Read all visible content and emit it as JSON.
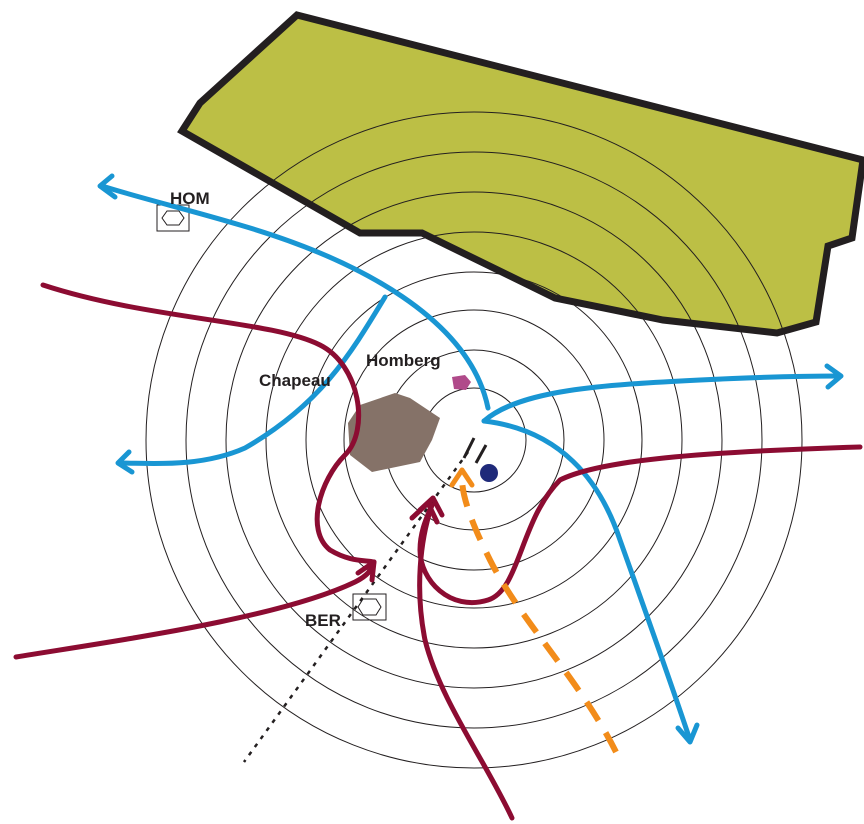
{
  "labels": {
    "hom": "HOM",
    "homberg": "Homberg",
    "chapeau": "Chapeau",
    "ber": "BER"
  },
  "colors": {
    "terrain_fill": "#bcbf45",
    "terrain_stroke": "#231f20",
    "town_fill": "#857268",
    "village_fill": "#b04a8a",
    "ring_stroke": "#231f20",
    "departure_route": "#1996d3",
    "arrival_route": "#8c0c32",
    "approach_route": "#f28c1a",
    "airport_marker": "#1f2a7a",
    "beacon_stroke": "#231f20"
  },
  "icons": {
    "beacon": "vor-beacon-icon",
    "airport": "airport-marker-icon"
  }
}
